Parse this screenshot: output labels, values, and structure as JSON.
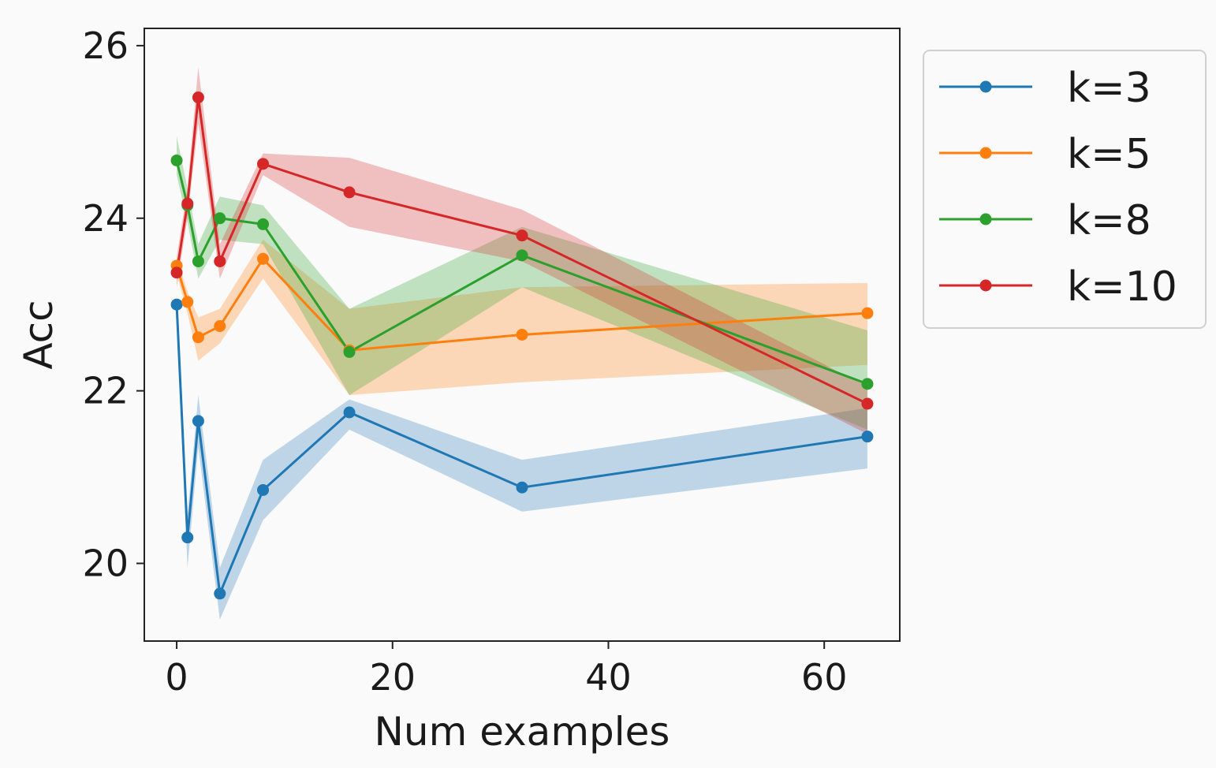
{
  "chart_data": {
    "type": "line",
    "xlabel": "Num examples",
    "ylabel": "Acc",
    "xlim": [
      -3,
      67
    ],
    "ylim": [
      19.1,
      26.2
    ],
    "xticks": [
      0,
      20,
      40,
      60
    ],
    "yticks": [
      20,
      22,
      24,
      26
    ],
    "grid": false,
    "legend_position": "outside-right",
    "x": [
      0,
      1,
      2,
      4,
      8,
      16,
      32,
      64
    ],
    "series": [
      {
        "name": "k=3",
        "color": "#1f77b4",
        "values": [
          23.0,
          20.3,
          21.65,
          19.65,
          20.85,
          21.75,
          20.88,
          21.47
        ],
        "lower": [
          22.9,
          19.95,
          21.35,
          19.35,
          20.5,
          21.55,
          20.6,
          21.1
        ],
        "upper": [
          23.1,
          20.55,
          21.95,
          19.95,
          21.2,
          21.9,
          21.2,
          21.8
        ]
      },
      {
        "name": "k=5",
        "color": "#ff7f0e",
        "values": [
          23.45,
          23.03,
          22.62,
          22.75,
          23.53,
          22.47,
          22.65,
          22.9
        ],
        "lower": [
          23.35,
          22.9,
          22.35,
          22.55,
          23.3,
          21.95,
          22.1,
          22.3
        ],
        "upper": [
          23.55,
          23.15,
          22.85,
          22.95,
          23.75,
          22.95,
          23.2,
          23.25
        ]
      },
      {
        "name": "k=8",
        "color": "#2ca02c",
        "values": [
          24.67,
          24.15,
          23.5,
          24.0,
          23.93,
          22.45,
          23.57,
          22.08
        ],
        "lower": [
          24.5,
          23.95,
          23.3,
          23.75,
          23.7,
          21.95,
          23.2,
          21.55
        ],
        "upper": [
          24.95,
          24.35,
          23.7,
          24.25,
          24.15,
          22.95,
          23.9,
          22.7
        ]
      },
      {
        "name": "k=10",
        "color": "#d62728",
        "values": [
          23.37,
          24.17,
          25.4,
          23.5,
          24.63,
          24.3,
          23.8,
          21.85
        ],
        "lower": [
          23.2,
          24.0,
          25.1,
          23.3,
          24.5,
          23.9,
          23.5,
          21.5
        ],
        "upper": [
          23.55,
          24.35,
          25.75,
          23.7,
          24.75,
          24.7,
          24.1,
          22.05
        ]
      }
    ]
  }
}
